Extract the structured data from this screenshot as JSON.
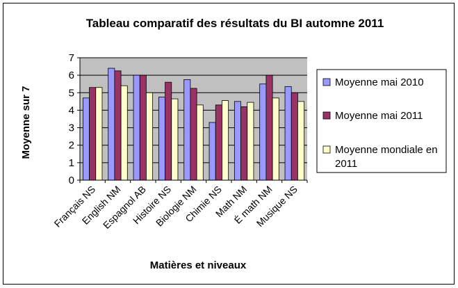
{
  "chart_data": {
    "type": "bar",
    "title": "Tableau comparatif des résultats du BI automne 2011",
    "xlabel": "Matières et niveaux",
    "ylabel": "Moyenne sur 7",
    "ylim": [
      0,
      7
    ],
    "yticks": [
      "0",
      "1",
      "2",
      "3",
      "4",
      "5",
      "6",
      "7"
    ],
    "grid": true,
    "legend_position": "right",
    "categories": [
      "Français NS",
      "English NM",
      "Espagnol AB",
      "Histoire NS",
      "Biologie NM",
      "Chimie NS",
      "Math NM",
      "É math NM",
      "Musique NS"
    ],
    "series": [
      {
        "name": "Moyenne mai 2010",
        "color": "#9999ff",
        "values": [
          4.7,
          6.4,
          6.0,
          4.75,
          5.75,
          3.3,
          4.5,
          5.5,
          5.35
        ]
      },
      {
        "name": "Moyenne mai 2011",
        "color": "#993366",
        "values": [
          5.3,
          6.25,
          6.0,
          5.6,
          5.25,
          4.3,
          4.2,
          6.0,
          5.0
        ]
      },
      {
        "name": "Moyenne mondiale en 2011",
        "color": "#ffffcc",
        "values": [
          5.3,
          5.4,
          5.0,
          4.65,
          4.3,
          4.55,
          4.45,
          4.7,
          4.5
        ]
      }
    ],
    "plot_background": "#c0c0c0"
  }
}
